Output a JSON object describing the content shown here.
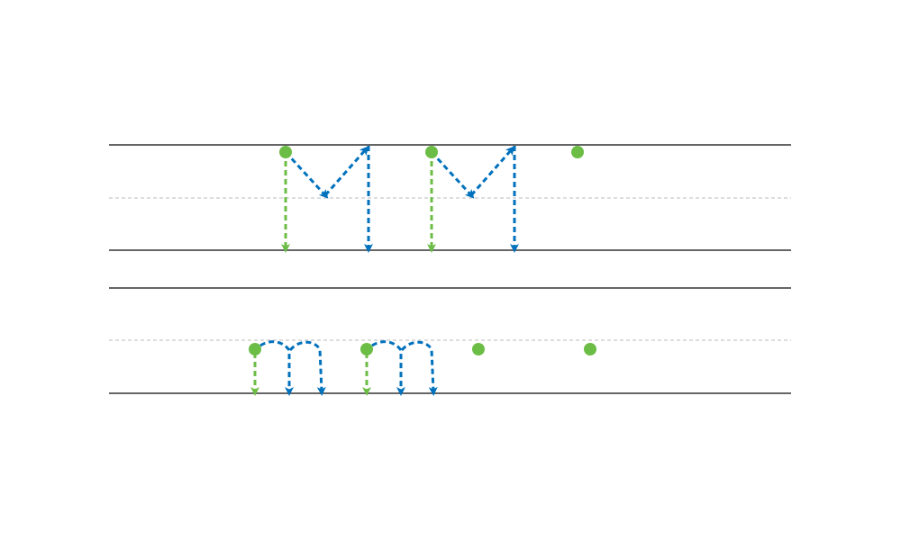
{
  "colors": {
    "guide_line": "#333333",
    "midline": "#bbbbbb",
    "start_stroke": "#6cbd45",
    "main_stroke": "#0071bc",
    "start_dot": "#6cbd45"
  },
  "rows": [
    {
      "name": "uppercase-M",
      "letter": "M",
      "traced_count": 2,
      "practice_dots": 1
    },
    {
      "name": "lowercase-m",
      "letter": "m",
      "traced_count": 2,
      "practice_dots": 2
    }
  ]
}
